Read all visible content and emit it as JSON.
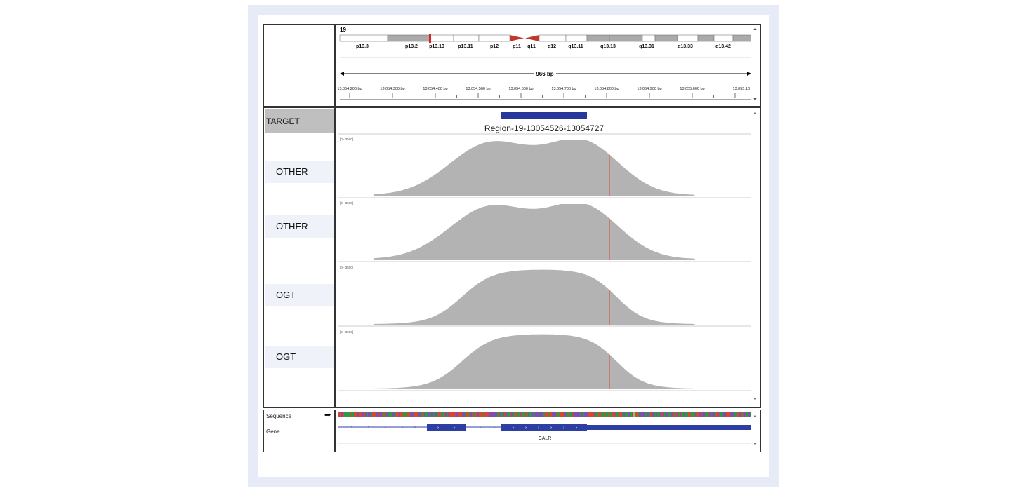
{
  "ideogram": {
    "chromosome": "19",
    "bands": [
      "p13.3",
      "p13.2",
      "p13.13",
      "p13.11",
      "p12",
      "p11",
      "q11",
      "q12",
      "q13.11",
      "q13.13",
      "q13.31",
      "q13.33",
      "q13.42"
    ]
  },
  "ruler": {
    "span_label": "966 bp",
    "ticks": [
      "13,054,200 bp",
      "13,054,300 bp",
      "13,054,400 bp",
      "13,054,500 bp",
      "13,054,600 bp",
      "13,054,700 bp",
      "13,054,800 bp",
      "13,054,900 bp",
      "13,055,000 bp",
      "13,055,10"
    ]
  },
  "target": {
    "label": "TARGET",
    "region_label": "Region-19-13054526-13054727"
  },
  "tracks": [
    {
      "name": "OTHER",
      "range": "[0 - 3500]",
      "shape": "bimodal"
    },
    {
      "name": "OTHER",
      "range": "[0 - 3500]",
      "shape": "bimodal"
    },
    {
      "name": "OGT",
      "range": "[0 - 3500]",
      "shape": "plateau"
    },
    {
      "name": "OGT",
      "range": "[0 - 3500]",
      "shape": "plateau"
    }
  ],
  "bottom": {
    "sequence_label": "Sequence",
    "gene_label": "Gene",
    "gene_name": "CALR"
  },
  "colors": {
    "coverage": "#b3b3b3",
    "marker": "#e0452a",
    "region": "#27389a",
    "gene": "#2d3fa3",
    "label_bg": "#f0f2fa",
    "target_bg": "#bfbfbf"
  }
}
